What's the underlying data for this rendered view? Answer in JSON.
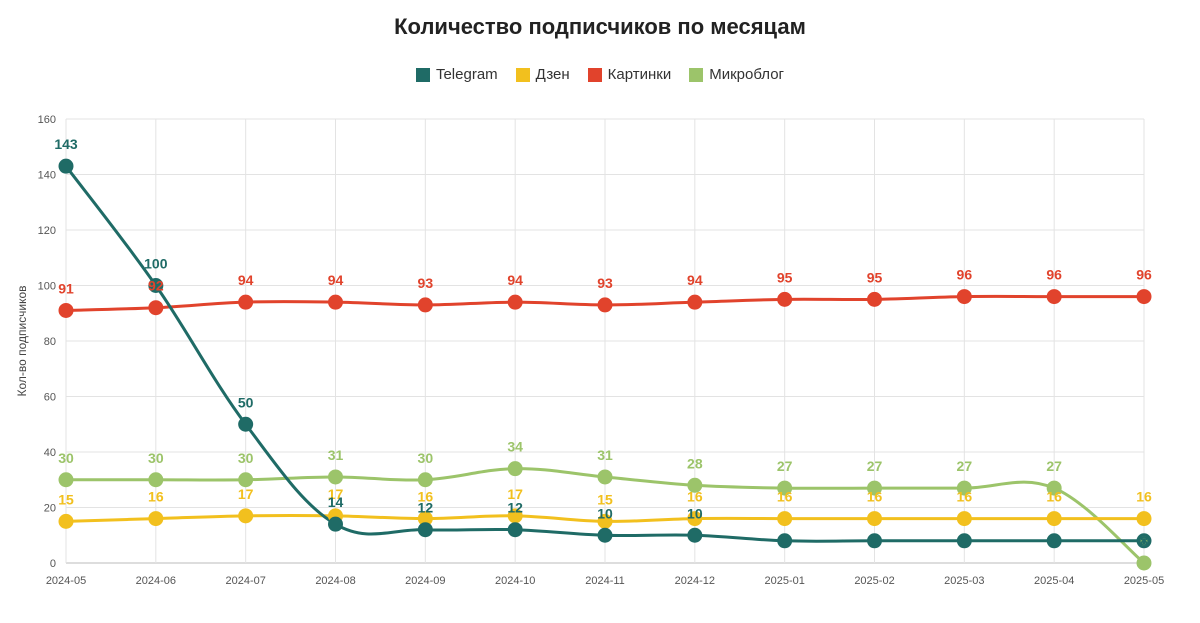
{
  "chart_data": {
    "type": "line",
    "title": "Количество подписчиков по месяцам",
    "xlabel": "",
    "ylabel": "Кол-во подписчиков",
    "ylim": [
      0,
      160
    ],
    "yticks": [
      0,
      20,
      40,
      60,
      80,
      100,
      120,
      140,
      160
    ],
    "grid": true,
    "legend_position": "top-center",
    "categories": [
      "2024-05",
      "2024-06",
      "2024-07",
      "2024-08",
      "2024-09",
      "2024-10",
      "2024-11",
      "2024-12",
      "2025-01",
      "2025-02",
      "2025-03",
      "2025-04",
      "2025-05"
    ],
    "series": [
      {
        "name": "Telegram",
        "color": "#1f6b66",
        "values": [
          143,
          100,
          50,
          14,
          12,
          12,
          10,
          10,
          8,
          8,
          8,
          8,
          8
        ]
      },
      {
        "name": "Дзен",
        "color": "#f2c01e",
        "values": [
          15,
          16,
          17,
          17,
          16,
          17,
          15,
          16,
          16,
          16,
          16,
          16,
          16
        ]
      },
      {
        "name": "Картинки",
        "color": "#e1432c",
        "values": [
          91,
          92,
          94,
          94,
          93,
          94,
          93,
          94,
          95,
          95,
          96,
          96,
          96
        ]
      },
      {
        "name": "Микроблог",
        "color": "#9cc46a",
        "values": [
          30,
          30,
          30,
          31,
          30,
          34,
          31,
          28,
          27,
          27,
          27,
          27,
          0
        ]
      }
    ]
  }
}
